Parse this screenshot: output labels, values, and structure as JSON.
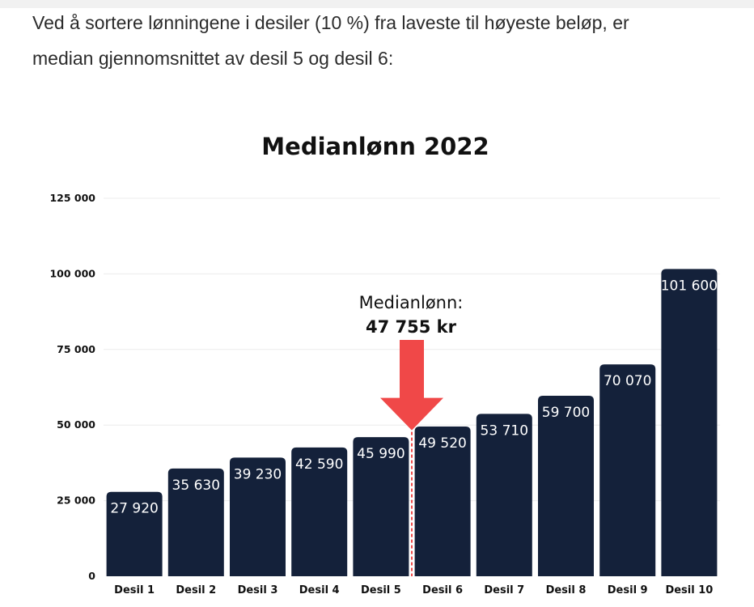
{
  "article": {
    "paragraph_line1": "Ved å sortere lønningene i desiler (10 %) fra laveste til høyeste beløp, er",
    "paragraph_line2": "median gjennomsnittet av desil 5 og desil 6:"
  },
  "chart_data": {
    "type": "bar",
    "title": "Medianlønn 2022",
    "xlabel": "",
    "ylabel": "",
    "categories": [
      "Desil 1",
      "Desil 2",
      "Desil 3",
      "Desil 4",
      "Desil 5",
      "Desil 6",
      "Desil 7",
      "Desil 8",
      "Desil 9",
      "Desil 10"
    ],
    "values": [
      27920,
      35630,
      39230,
      42590,
      45990,
      49520,
      53710,
      59700,
      70070,
      101600
    ],
    "value_labels": [
      "27 920",
      "35 630",
      "39 230",
      "42 590",
      "45 990",
      "49 520",
      "53 710",
      "59 700",
      "70 070",
      "101 600"
    ],
    "ylim": [
      0,
      125000
    ],
    "yticks": [
      0,
      25000,
      50000,
      75000,
      100000,
      125000
    ],
    "ytick_labels": [
      "0",
      "25 000",
      "50 000",
      "75 000",
      "100 000",
      "125 000"
    ],
    "grid": true,
    "bar_color": "#14213a",
    "annotation": {
      "line1": "Medianlønn:",
      "line2": "47 755 kr",
      "value": 47755,
      "between": [
        "Desil 5",
        "Desil 6"
      ],
      "arrow_color": "#f04848"
    }
  }
}
